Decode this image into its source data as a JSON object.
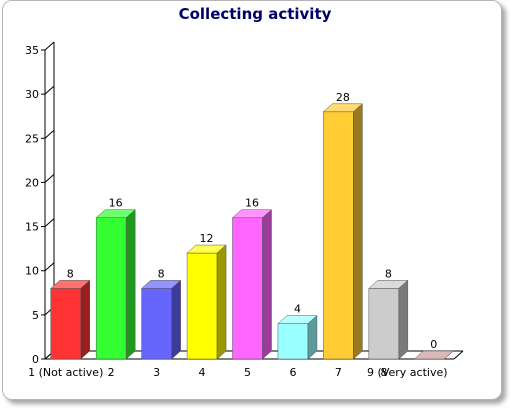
{
  "chart_data": {
    "type": "bar",
    "title": "Collecting activity",
    "xlabel": "",
    "ylabel": "",
    "ylim": [
      0,
      35
    ],
    "yticks": [
      0,
      5,
      10,
      15,
      20,
      25,
      30,
      35
    ],
    "grid": false,
    "legend": "none",
    "three_d": true,
    "categories": [
      "1 (Not active)",
      "2",
      "3",
      "4",
      "5",
      "6",
      "7",
      "8",
      "9 (Very active)"
    ],
    "values": [
      8,
      16,
      8,
      12,
      16,
      4,
      28,
      8,
      0
    ],
    "colors": [
      "#ff3333",
      "#33ff33",
      "#6666ff",
      "#ffff00",
      "#ff66ff",
      "#99ffff",
      "#ffcc33",
      "#cccccc",
      "#cc9999"
    ]
  }
}
